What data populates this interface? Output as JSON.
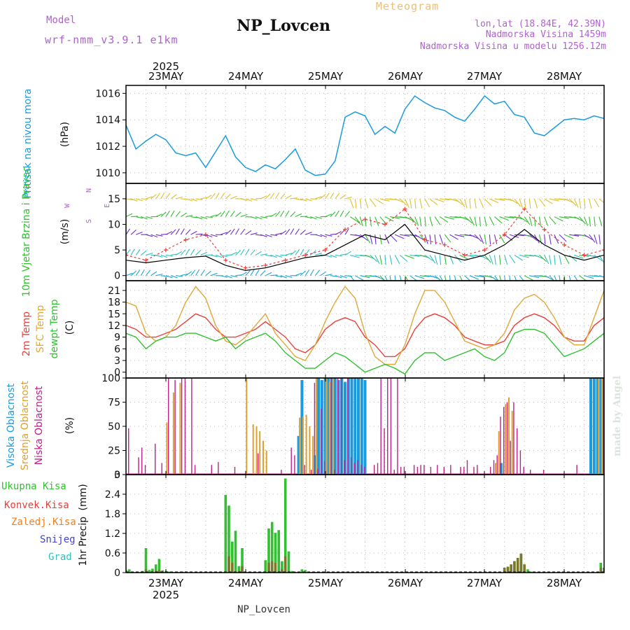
{
  "header": {
    "model_label": "Model",
    "model_name": "wrf-nmm_v3.9.1  e1km",
    "station": "NP_Lovcen",
    "meteogram": "Meteogram",
    "lonlat": "lon,lat (18.84E, 42.39N)",
    "altitude": "Nadmorska Visina 1459m",
    "model_altitude": "Nadmorska Visina u modelu 1256.12m",
    "footer_station": "NP_Lovcen",
    "watermark": "made by Angel"
  },
  "x_axis": {
    "top_year": "2025",
    "bottom_year": "2025",
    "day_labels": [
      "23MAY",
      "24MAY",
      "25MAY",
      "26MAY",
      "27MAY",
      "28MAY"
    ]
  },
  "colors": {
    "pressure": "#1a9be0",
    "temp2m": "#e8403a",
    "sfc": "#e0a838",
    "dewpt": "#30c030",
    "high_cloud": "#1a9be0",
    "mid_cloud": "#e0a030",
    "low_cloud": "#c0208a",
    "total_precip": "#30c030",
    "conv_precip": "#e8403a",
    "frozen": "#f08020",
    "snow": "#4040e0",
    "hail": "#30c0c0",
    "wind_speed": "#000000",
    "wind_gust": "#e8403a"
  },
  "chart_data": [
    {
      "type": "line",
      "title": "",
      "ylabel": "Pritisak na nivou mora",
      "unit": "(hPa)",
      "ylim": [
        1009.2,
        1016.6
      ],
      "yticks": [
        "1010",
        "1012",
        "1014",
        "1016"
      ],
      "x": [
        0,
        3,
        6,
        9,
        12,
        15,
        18,
        21,
        24,
        27,
        30,
        33,
        36,
        39,
        42,
        45,
        48,
        51,
        54,
        57,
        60,
        63,
        66,
        69,
        72,
        75,
        78,
        81,
        84,
        87,
        90,
        93,
        96,
        99,
        102,
        105,
        108,
        111,
        114,
        117,
        120,
        123,
        126,
        129,
        132,
        135,
        138,
        141,
        144
      ],
      "series": [
        {
          "name": "Pritisak na nivou mora",
          "values": [
            1013.6,
            1011.8,
            1012.4,
            1012.9,
            1012.5,
            1011.5,
            1011.3,
            1011.5,
            1010.4,
            1011.6,
            1012.8,
            1011.2,
            1010.4,
            1010.1,
            1010.6,
            1010.3,
            1011.0,
            1011.8,
            1010.2,
            1009.8,
            1009.9,
            1010.9,
            1014.2,
            1014.6,
            1014.3,
            1012.9,
            1013.5,
            1013.0,
            1014.8,
            1015.8,
            1015.3,
            1014.9,
            1014.7,
            1014.2,
            1013.9,
            1014.8,
            1015.8,
            1015.2,
            1015.4,
            1014.4,
            1014.2,
            1013.0,
            1012.8,
            1013.4,
            1014.0,
            1014.1,
            1014.0,
            1014.3,
            1014.1
          ]
        }
      ],
      "grid": true
    },
    {
      "type": "line",
      "title": "",
      "ylabel": "10m Vjetar Brzina i Pravac",
      "unit": "(m/s)",
      "compass": [
        "N",
        "W",
        "E",
        "S"
      ],
      "ylim": [
        -1,
        18
      ],
      "yticks": [
        "0",
        "5",
        "10",
        "15"
      ],
      "x": [
        0,
        6,
        12,
        18,
        24,
        30,
        36,
        42,
        48,
        54,
        60,
        66,
        72,
        78,
        84,
        90,
        96,
        102,
        108,
        114,
        120,
        126,
        132,
        138,
        144
      ],
      "series": [
        {
          "name": "Brzina",
          "values": [
            3,
            2.5,
            3,
            3.5,
            3.8,
            2,
            1,
            1.5,
            2.5,
            3.5,
            4,
            6,
            8,
            7,
            10,
            5,
            4,
            3,
            4,
            6,
            9,
            6,
            4,
            3,
            4
          ]
        },
        {
          "name": "Udar",
          "values": [
            4,
            3,
            5,
            7,
            8,
            3,
            1.5,
            2,
            3,
            4,
            5,
            9,
            11,
            10,
            13,
            7,
            6,
            4,
            5,
            8,
            13,
            9,
            6,
            4,
            5
          ]
        }
      ],
      "grid": true
    },
    {
      "type": "line",
      "title": "",
      "series_labels": [
        "2m Temp",
        "SFC Temp",
        "dewpt Temp"
      ],
      "unit": "(C)",
      "ylim": [
        -1.5,
        23.5
      ],
      "yticks": [
        "0",
        "3",
        "6",
        "9",
        "12",
        "15",
        "18",
        "21"
      ],
      "x": [
        0,
        3,
        6,
        9,
        12,
        15,
        18,
        21,
        24,
        27,
        30,
        33,
        36,
        39,
        42,
        45,
        48,
        51,
        54,
        57,
        60,
        63,
        66,
        69,
        72,
        75,
        78,
        81,
        84,
        87,
        90,
        93,
        96,
        99,
        102,
        105,
        108,
        111,
        114,
        117,
        120,
        123,
        126,
        129,
        132,
        135,
        138,
        141,
        144
      ],
      "series": [
        {
          "name": "2m Temp",
          "values": [
            12,
            11,
            9,
            9,
            10,
            11,
            13,
            15,
            14,
            11,
            9,
            9,
            10,
            11,
            13,
            11,
            9,
            6,
            5,
            7,
            11,
            13,
            14,
            13,
            9,
            7,
            4,
            4,
            6,
            11,
            14,
            15,
            14,
            12,
            9,
            8,
            7,
            7,
            8,
            12,
            14,
            15,
            14,
            12,
            9,
            8,
            8,
            12,
            14
          ]
        },
        {
          "name": "SFC Temp",
          "values": [
            18,
            17,
            10,
            8,
            9,
            12,
            18,
            22,
            19,
            12,
            8,
            7,
            9,
            12,
            15,
            10,
            7,
            4,
            3,
            7,
            13,
            18,
            22,
            19,
            10,
            4,
            2,
            2,
            7,
            15,
            21,
            21,
            18,
            13,
            8,
            7,
            6,
            7,
            10,
            16,
            19,
            20,
            18,
            14,
            9,
            7,
            7,
            14,
            21
          ]
        },
        {
          "name": "dewpt Temp",
          "values": [
            10,
            9,
            6,
            8,
            9,
            9,
            10,
            10,
            9,
            8,
            9,
            6,
            8,
            9,
            10,
            8,
            5,
            3,
            1,
            1,
            3,
            5,
            4,
            2,
            0,
            1,
            2,
            1,
            -0.5,
            3,
            5,
            5,
            3,
            4,
            5,
            6,
            4,
            3,
            5,
            10,
            11,
            11,
            10,
            7,
            4,
            5,
            6,
            8,
            10
          ]
        }
      ],
      "grid": true
    },
    {
      "type": "bar",
      "title": "",
      "series_labels": [
        "Visoka Oblacnost",
        "Srednja Oblacnost",
        "Niska Oblacnost"
      ],
      "unit": "(%)",
      "ylim": [
        0,
        100
      ],
      "yticks": [
        "0",
        "25",
        "50",
        "75",
        "100"
      ],
      "series": [
        {
          "name": "Visoka Oblacnost",
          "hours": [
            52,
            53,
            57,
            58,
            59,
            60,
            61,
            62,
            63,
            64,
            65,
            66,
            67,
            68,
            69,
            70,
            71,
            72,
            113,
            140,
            141,
            142,
            143,
            144
          ],
          "values": [
            40,
            98,
            20,
            100,
            98,
            100,
            100,
            100,
            100,
            98,
            100,
            96,
            100,
            100,
            100,
            100,
            100,
            98,
            12,
            100,
            100,
            100,
            100,
            100
          ]
        },
        {
          "name": "Srednja Oblacnost",
          "hours": [
            12,
            14,
            16,
            36,
            38,
            39,
            40,
            41,
            42,
            52,
            53,
            54,
            55,
            56,
            57,
            60,
            61,
            62,
            111,
            112,
            114,
            115,
            116,
            142,
            143,
            144
          ],
          "values": [
            54,
            85,
            95,
            100,
            52,
            50,
            45,
            35,
            25,
            59,
            60,
            62,
            50,
            40,
            100,
            100,
            96,
            100,
            12,
            45,
            73,
            80,
            66,
            100,
            100,
            100
          ]
        },
        {
          "name": "Niska Oblacnost",
          "hours": [
            1,
            4,
            5,
            6,
            9,
            11,
            13,
            15,
            17,
            18,
            20,
            21,
            26,
            28,
            33,
            40,
            47,
            50,
            51,
            54,
            56,
            57,
            58,
            59,
            60,
            62,
            63,
            64,
            65,
            66,
            67,
            68,
            69,
            70,
            71,
            72,
            75,
            76,
            77,
            78,
            79,
            80,
            81,
            82,
            83,
            84,
            87,
            88,
            89,
            90,
            92,
            94,
            96,
            98,
            101,
            102,
            103,
            105,
            106,
            110,
            111,
            112,
            113,
            114,
            115,
            116,
            117,
            118,
            119,
            120,
            122,
            126,
            136,
            144
          ],
          "values": [
            48,
            18,
            28,
            10,
            32,
            12,
            100,
            98,
            100,
            100,
            100,
            10,
            10,
            13,
            8,
            22,
            5,
            28,
            20,
            10,
            5,
            95,
            6,
            68,
            14,
            100,
            5,
            100,
            100,
            15,
            100,
            18,
            12,
            15,
            10,
            8,
            10,
            12,
            100,
            48,
            100,
            100,
            5,
            100,
            8,
            8,
            10,
            8,
            10,
            10,
            8,
            10,
            8,
            10,
            8,
            8,
            15,
            8,
            10,
            8,
            15,
            20,
            60,
            70,
            75,
            35,
            75,
            48,
            25,
            8,
            5,
            5,
            10,
            100
          ]
        }
      ],
      "grid": true
    },
    {
      "type": "bar",
      "title": "",
      "ylabel": "1hr Precip",
      "unit": "(mm)",
      "series_labels": [
        "Ukupna Kisa",
        "Konvek.Kisa",
        "Zaledj.Kisa",
        "Snijeg",
        "Grad"
      ],
      "ylim": [
        0,
        3
      ],
      "yticks": [
        "0",
        "0.6",
        "1.2",
        "1.8",
        "2.4",
        "3"
      ],
      "series": [
        {
          "name": "Ukupna Kisa",
          "hours": [
            0,
            1,
            5,
            6,
            7,
            8,
            9,
            10,
            11,
            12,
            13,
            14,
            15,
            16,
            17,
            30,
            31,
            32,
            33,
            34,
            35,
            36,
            37,
            38,
            42,
            43,
            44,
            45,
            46,
            47,
            48,
            49,
            50,
            51,
            53,
            54,
            55,
            56,
            57,
            114,
            115,
            116,
            117,
            118,
            119,
            120,
            121,
            122,
            143,
            144
          ],
          "values": [
            0.08,
            0.1,
            0.05,
            0.75,
            0.08,
            0.12,
            0.25,
            0.42,
            0.07,
            0.05,
            0.03,
            0.02,
            0.02,
            0.02,
            0.03,
            2.38,
            2.05,
            0.95,
            1.28,
            0.2,
            0.75,
            0.02,
            0.02,
            0.02,
            0.38,
            1.35,
            1.55,
            1.22,
            1.3,
            0.35,
            2.88,
            0.65,
            0.05,
            0.02,
            0.1,
            0.08,
            0.02,
            0.02,
            0.02,
            0.15,
            0.18,
            0.25,
            0.35,
            0.45,
            0.58,
            0.25,
            0.1,
            0.03,
            0.3,
            0.15
          ]
        },
        {
          "name": "Konvek.Kisa",
          "hours": [
            6,
            9,
            10,
            31,
            32,
            34,
            35,
            43,
            44,
            45,
            47,
            48,
            114,
            115,
            116,
            117,
            118,
            119,
            120,
            143
          ],
          "values": [
            0.1,
            0.05,
            0.08,
            0.5,
            0.3,
            0.05,
            0.2,
            0.3,
            0.35,
            0.3,
            0.1,
            0.5,
            0.15,
            0.18,
            0.25,
            0.35,
            0.45,
            0.58,
            0.25,
            0.15
          ]
        }
      ],
      "grid": true
    }
  ]
}
